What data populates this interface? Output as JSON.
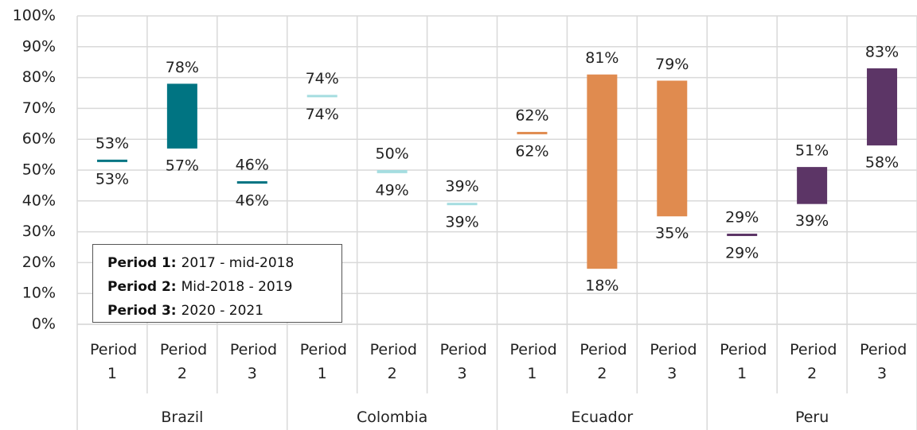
{
  "chart_data": {
    "type": "range-bar",
    "groups": [
      "Brazil",
      "Colombia",
      "Ecuador",
      "Peru"
    ],
    "categories": [
      "Period 1",
      "Period 2",
      "Period 3",
      "Period 1",
      "Period 2",
      "Period 3",
      "Period 1",
      "Period 2",
      "Period 3",
      "Period 1",
      "Period 2",
      "Period 3"
    ],
    "group_colors": [
      "#007482",
      "#a5dde0",
      "#e08b4f",
      "#5c3566"
    ],
    "low": [
      53,
      57,
      46,
      74,
      49,
      39,
      62,
      18,
      35,
      29,
      39,
      58
    ],
    "low_labels": [
      "53%",
      "57%",
      "46%",
      "74%",
      "49%",
      "39%",
      "62%",
      "18%",
      "35%",
      "29%",
      "39%",
      "58%"
    ],
    "high": [
      53,
      78,
      46,
      74,
      50,
      39,
      62,
      81,
      79,
      29,
      51,
      83
    ],
    "high_labels": [
      "53%",
      "78%",
      "46%",
      "74%",
      "50%",
      "39%",
      "62%",
      "81%",
      "79%",
      "29%",
      "51%",
      "83%"
    ],
    "ylim": [
      0,
      100
    ],
    "yticks": [
      {
        "value": 0,
        "label": "0%"
      },
      {
        "value": 10,
        "label": "10%"
      },
      {
        "value": 20,
        "label": "20%"
      },
      {
        "value": 30,
        "label": "30%"
      },
      {
        "value": 40,
        "label": "40%"
      },
      {
        "value": 50,
        "label": "50%"
      },
      {
        "value": 60,
        "label": "60%"
      },
      {
        "value": 70,
        "label": "70%"
      },
      {
        "value": 80,
        "label": "80%"
      },
      {
        "value": 90,
        "label": "90%"
      },
      {
        "value": 100,
        "label": "100%"
      }
    ],
    "grid": true,
    "legend_notes": [
      {
        "label": "Period 1:",
        "text": "2017 - mid-2018"
      },
      {
        "label": "Period 2:",
        "text": "Mid-2018 - 2019"
      },
      {
        "label": "Period 3:",
        "text": "2020 - 2021"
      }
    ]
  }
}
